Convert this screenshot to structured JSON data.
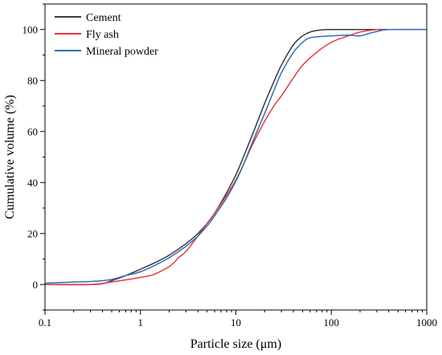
{
  "chart_data": {
    "type": "line",
    "xlabel": "Particle size (μm)",
    "ylabel": "Cumulative volume (%)",
    "x_scale": "log",
    "xlim": [
      0.1,
      1000
    ],
    "ylim": [
      -10,
      110
    ],
    "x_ticks": [
      0.1,
      1,
      10,
      100,
      1000
    ],
    "x_tick_labels": [
      "0.1",
      "1",
      "10",
      "100",
      "1000"
    ],
    "y_ticks": [
      0,
      20,
      40,
      60,
      80,
      100
    ],
    "y_tick_labels": [
      "0",
      "20",
      "40",
      "60",
      "80",
      "100"
    ],
    "grid": false,
    "legend_position": "top-left",
    "series": [
      {
        "name": "Cement",
        "color": "#3a3a3a",
        "x": [
          0.1,
          0.2,
          0.3,
          0.4,
          0.5,
          0.7,
          1,
          1.5,
          2,
          3,
          4,
          5,
          6,
          8,
          10,
          12,
          15,
          20,
          25,
          30,
          40,
          50,
          60,
          70,
          80,
          100,
          150,
          200,
          400,
          1000
        ],
        "y": [
          0,
          0,
          0,
          0.3,
          1.5,
          3.5,
          6,
          9,
          11.5,
          16,
          20,
          24,
          28,
          36,
          43,
          50,
          59,
          71,
          79.5,
          86,
          94,
          97.5,
          99,
          99.6,
          99.9,
          100,
          100,
          100,
          100,
          100
        ]
      },
      {
        "name": "Fly ash",
        "color": "#e8373d",
        "x": [
          0.1,
          0.3,
          0.5,
          0.7,
          1,
          1.3,
          1.5,
          2,
          2.3,
          2.5,
          3,
          4,
          5,
          6,
          8,
          10,
          12,
          15,
          20,
          25,
          30,
          40,
          50,
          70,
          100,
          150,
          200,
          300,
          400,
          1000
        ],
        "y": [
          0,
          0,
          1,
          1.8,
          2.8,
          3.6,
          4.5,
          7,
          9,
          10.5,
          13,
          19,
          24,
          28,
          35,
          41,
          47,
          55,
          64,
          70,
          74,
          81,
          86,
          91,
          95,
          97.5,
          99,
          100,
          100,
          100
        ]
      },
      {
        "name": "Mineral powder",
        "color": "#2f6fb8",
        "x": [
          0.1,
          0.2,
          0.3,
          0.4,
          0.5,
          0.7,
          1,
          1.5,
          2,
          3,
          4,
          5,
          6,
          8,
          10,
          12,
          15,
          20,
          25,
          30,
          40,
          50,
          60,
          80,
          100,
          150,
          200,
          250,
          300,
          400,
          1000
        ],
        "y": [
          0.5,
          1,
          1.2,
          1.5,
          2,
          3.5,
          5,
          8,
          10.5,
          15,
          19,
          23,
          27,
          34,
          40.5,
          47,
          56,
          67,
          76,
          83,
          91,
          95,
          96.8,
          97.3,
          97.5,
          97.8,
          97.5,
          98.5,
          99.2,
          100,
          100
        ]
      }
    ]
  }
}
